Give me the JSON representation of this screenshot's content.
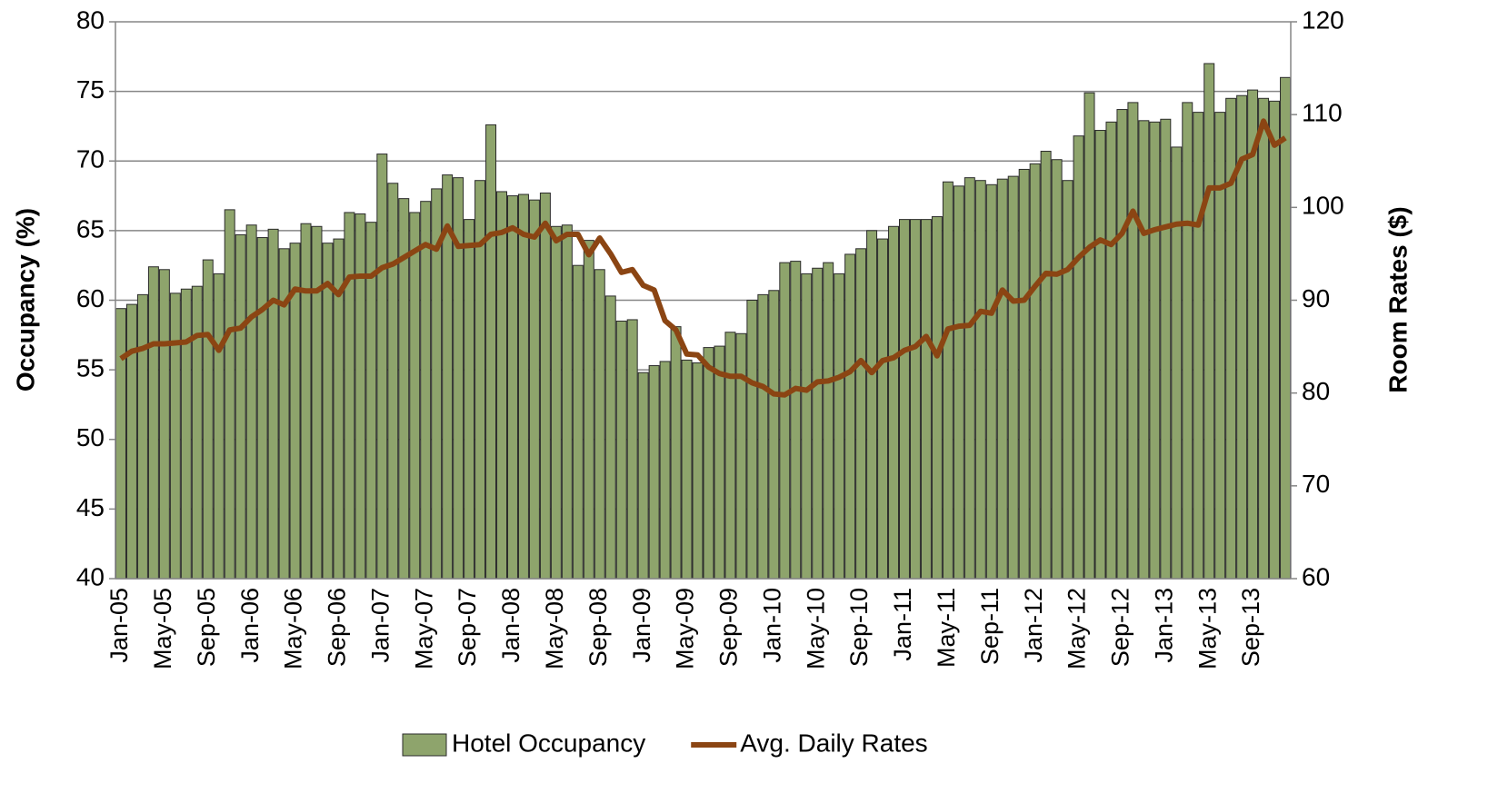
{
  "chart_data": {
    "type": "bar",
    "y_label": "Occupancy (%)",
    "y2_label": "Room Rates ($)",
    "categories": [
      "Jan-05",
      null,
      null,
      null,
      "May-05",
      null,
      null,
      null,
      "Sep-05",
      null,
      null,
      null,
      "Jan-06",
      null,
      null,
      null,
      "May-06",
      null,
      null,
      null,
      "Sep-06",
      null,
      null,
      null,
      "Jan-07",
      null,
      null,
      null,
      "May-07",
      null,
      null,
      null,
      "Sep-07",
      null,
      null,
      null,
      "Jan-08",
      null,
      null,
      null,
      "May-08",
      null,
      null,
      null,
      "Sep-08",
      null,
      null,
      null,
      "Jan-09",
      null,
      null,
      null,
      "May-09",
      null,
      null,
      null,
      "Sep-09",
      null,
      null,
      null,
      "Jan-10",
      null,
      null,
      null,
      "May-10",
      null,
      null,
      null,
      "Sep-10",
      null,
      null,
      null,
      "Jan-11",
      null,
      null,
      null,
      "May-11",
      null,
      null,
      null,
      "Sep-11",
      null,
      null,
      null,
      "Jan-12",
      null,
      null,
      null,
      "May-12",
      null,
      null,
      null,
      "Sep-12",
      null,
      null,
      null,
      "Jan-13",
      null,
      null,
      null,
      "May-13",
      null,
      null,
      null,
      "Sep-13",
      null,
      null,
      null
    ],
    "series": [
      {
        "name": "Hotel Occupancy",
        "type": "bar",
        "color": "#8ea46c",
        "values": [
          59.4,
          59.7,
          60.4,
          62.4,
          62.2,
          60.5,
          60.8,
          61.0,
          62.9,
          61.9,
          66.5,
          64.7,
          65.4,
          64.5,
          65.1,
          63.7,
          64.1,
          65.5,
          65.3,
          64.1,
          64.4,
          66.3,
          66.2,
          65.6,
          70.5,
          68.4,
          67.3,
          66.3,
          67.1,
          68.0,
          69.0,
          68.8,
          65.8,
          68.6,
          72.6,
          67.8,
          67.5,
          67.6,
          67.2,
          67.7,
          65.3,
          65.4,
          62.5,
          64.3,
          62.2,
          60.3,
          58.5,
          58.6,
          54.8,
          55.3,
          55.6,
          58.1,
          55.7,
          55.5,
          56.6,
          56.7,
          57.7,
          57.6,
          60.0,
          60.4,
          60.7,
          62.7,
          62.8,
          61.9,
          62.3,
          62.7,
          61.9,
          63.3,
          63.7,
          65.0,
          64.4,
          65.3,
          65.8,
          65.8,
          65.8,
          66.0,
          68.5,
          68.2,
          68.8,
          68.6,
          68.3,
          68.7,
          68.9,
          69.4,
          69.8,
          70.7,
          70.1,
          68.6,
          71.8,
          74.9,
          72.2,
          72.8,
          73.7,
          74.2,
          72.9,
          72.8,
          73.0,
          71.0,
          74.2,
          73.5,
          77.0,
          73.5,
          74.5,
          74.7,
          75.1,
          74.5,
          74.3,
          76.0
        ]
      },
      {
        "name": "Avg. Daily Rates",
        "type": "line",
        "axis": "y2",
        "color": "#8b4513",
        "values": [
          83.7,
          84.5,
          84.8,
          85.3,
          85.3,
          85.4,
          85.5,
          86.2,
          86.3,
          84.6,
          86.8,
          87.0,
          88.2,
          89.0,
          90.0,
          89.5,
          91.2,
          91.0,
          91.0,
          91.8,
          90.6,
          92.5,
          92.6,
          92.6,
          93.5,
          93.9,
          94.6,
          95.3,
          96.0,
          95.5,
          98.0,
          95.8,
          95.9,
          96.0,
          97.1,
          97.3,
          97.8,
          97.1,
          96.8,
          98.3,
          96.4,
          97.1,
          97.1,
          94.9,
          96.7,
          95.0,
          93.0,
          93.3,
          91.6,
          91.1,
          87.8,
          86.8,
          84.2,
          84.1,
          82.8,
          82.1,
          81.8,
          81.8,
          81.1,
          80.7,
          79.9,
          79.8,
          80.5,
          80.3,
          81.2,
          81.3,
          81.7,
          82.3,
          83.5,
          82.2,
          83.5,
          83.8,
          84.6,
          85.0,
          86.1,
          84.0,
          86.9,
          87.2,
          87.3,
          88.8,
          88.6,
          91.1,
          89.9,
          90.0,
          91.5,
          92.9,
          92.8,
          93.3,
          94.6,
          95.7,
          96.5,
          96.0,
          97.2,
          99.6,
          97.2,
          97.6,
          97.9,
          98.2,
          98.3,
          98.1,
          102.1,
          102.1,
          102.6,
          105.2,
          105.7,
          109.3,
          106.7,
          107.5
        ]
      }
    ],
    "ylim": [
      40,
      80
    ],
    "yticks": [
      40,
      45,
      50,
      55,
      60,
      65,
      70,
      75,
      80
    ],
    "y2lim": [
      60,
      120
    ],
    "y2ticks": [
      60,
      70,
      80,
      90,
      100,
      110,
      120
    ],
    "grid": true,
    "legend": "bottom"
  }
}
